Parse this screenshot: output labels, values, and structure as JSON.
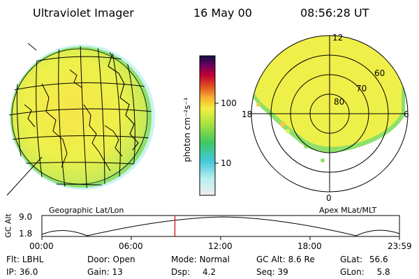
{
  "header": {
    "instrument": "Ultraviolet Imager",
    "date": "16 May 00",
    "time": "08:56:28 UT"
  },
  "colors": {
    "background": "#ffffff",
    "aurora_main": "#eef04a",
    "aurora_high": "#f6c84a",
    "aurora_edge_green": "#8fe06a",
    "aurora_edge_cyan": "#58d0d6",
    "time_marker": "#d00000",
    "lines": "#000000"
  },
  "geographic_panel": {
    "label": "Geographic Lat/Lon"
  },
  "colorbar": {
    "unit_label": "photon cm⁻²s⁻¹",
    "tick_labels": [
      "100",
      "10"
    ],
    "scale": "log"
  },
  "polar_panel": {
    "label": "Apex MLat/MLT",
    "mlt_labels": {
      "top": "12",
      "left": "18",
      "right": "6",
      "bottom": "0"
    },
    "lat_labels": [
      "80",
      "70",
      "60"
    ]
  },
  "altitude_plot": {
    "y_axis_label": "GC Alt",
    "y_ticks": [
      "9.0",
      "1.8"
    ],
    "x_ticks": [
      "00:00",
      "06:00",
      "12:00",
      "18:00",
      "23:59"
    ],
    "current_time_fraction": 0.372
  },
  "status": {
    "flt": {
      "label": "Flt:",
      "value": "LBHL"
    },
    "door": {
      "label": "Door:",
      "value": "Open"
    },
    "mode": {
      "label": "Mode:",
      "value": "Normal"
    },
    "gc_alt": {
      "label": "GC Alt:",
      "value": "8.6 Re"
    },
    "glat": {
      "label": "GLat:",
      "value": "56.6"
    },
    "ip": {
      "label": "IP:",
      "value": "36.0"
    },
    "gain": {
      "label": "Gain:",
      "value": "13"
    },
    "dsp": {
      "label": "Dsp:",
      "value": "4.2"
    },
    "seq": {
      "label": "Seq:",
      "value": "39"
    },
    "glon": {
      "label": "GLon:",
      "value": "5.8"
    }
  }
}
